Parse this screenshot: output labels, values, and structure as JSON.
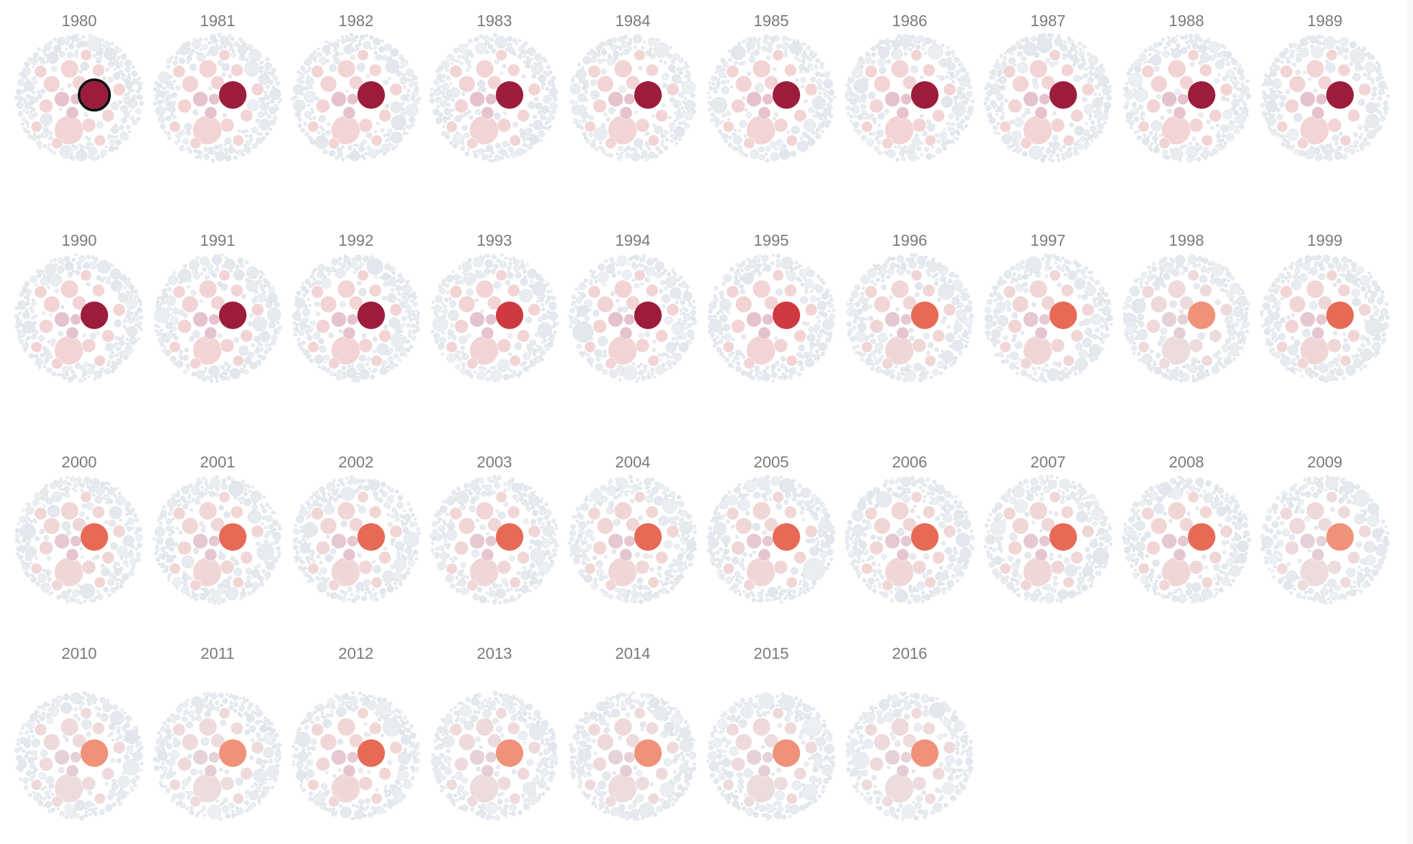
{
  "chart_data": {
    "type": "packed-bubble small multiples",
    "title": "",
    "panels": [
      {
        "year": "1980",
        "focus_level": 1.0,
        "highlighted": true
      },
      {
        "year": "1981",
        "focus_level": 1.0,
        "highlighted": false
      },
      {
        "year": "1982",
        "focus_level": 1.0,
        "highlighted": false
      },
      {
        "year": "1983",
        "focus_level": 1.0,
        "highlighted": false
      },
      {
        "year": "1984",
        "focus_level": 1.0,
        "highlighted": false
      },
      {
        "year": "1985",
        "focus_level": 1.0,
        "highlighted": false
      },
      {
        "year": "1986",
        "focus_level": 1.0,
        "highlighted": false
      },
      {
        "year": "1987",
        "focus_level": 1.0,
        "highlighted": false
      },
      {
        "year": "1988",
        "focus_level": 1.0,
        "highlighted": false
      },
      {
        "year": "1989",
        "focus_level": 1.0,
        "highlighted": false
      },
      {
        "year": "1990",
        "focus_level": 1.0,
        "highlighted": false
      },
      {
        "year": "1991",
        "focus_level": 1.0,
        "highlighted": false
      },
      {
        "year": "1992",
        "focus_level": 1.0,
        "highlighted": false
      },
      {
        "year": "1993",
        "focus_level": 0.85,
        "highlighted": false
      },
      {
        "year": "1994",
        "focus_level": 1.0,
        "highlighted": false
      },
      {
        "year": "1995",
        "focus_level": 0.85,
        "highlighted": false
      },
      {
        "year": "1996",
        "focus_level": 0.65,
        "highlighted": false
      },
      {
        "year": "1997",
        "focus_level": 0.65,
        "highlighted": false
      },
      {
        "year": "1998",
        "focus_level": 0.45,
        "highlighted": false
      },
      {
        "year": "1999",
        "focus_level": 0.65,
        "highlighted": false
      },
      {
        "year": "2000",
        "focus_level": 0.65,
        "highlighted": false
      },
      {
        "year": "2001",
        "focus_level": 0.65,
        "highlighted": false
      },
      {
        "year": "2002",
        "focus_level": 0.65,
        "highlighted": false
      },
      {
        "year": "2003",
        "focus_level": 0.65,
        "highlighted": false
      },
      {
        "year": "2004",
        "focus_level": 0.65,
        "highlighted": false
      },
      {
        "year": "2005",
        "focus_level": 0.65,
        "highlighted": false
      },
      {
        "year": "2006",
        "focus_level": 0.65,
        "highlighted": false
      },
      {
        "year": "2007",
        "focus_level": 0.65,
        "highlighted": false
      },
      {
        "year": "2008",
        "focus_level": 0.65,
        "highlighted": false
      },
      {
        "year": "2009",
        "focus_level": 0.45,
        "highlighted": false
      },
      {
        "year": "2010",
        "focus_level": 0.45,
        "highlighted": false
      },
      {
        "year": "2011",
        "focus_level": 0.45,
        "highlighted": false
      },
      {
        "year": "2012",
        "focus_level": 0.65,
        "highlighted": false
      },
      {
        "year": "2013",
        "focus_level": 0.45,
        "highlighted": false
      },
      {
        "year": "2014",
        "focus_level": 0.45,
        "highlighted": false
      },
      {
        "year": "2015",
        "focus_level": 0.45,
        "highlighted": false
      },
      {
        "year": "2016",
        "focus_level": 0.45,
        "highlighted": false
      }
    ],
    "colors": {
      "focus_max": "#9c1c3b",
      "focus_mid": "#cf3a40",
      "focus_low": "#e66a55",
      "focus_min": "#ef9279",
      "background_bubble": "#e2e7ed",
      "background_bubble_edge": "#d3dae2",
      "tint_pink": "#f2d4d4",
      "tint_mauve": "#e5c3cc",
      "year_label": "#7a7a7a",
      "highlight_ring": "#111111"
    },
    "legend": "none",
    "grid": false
  }
}
